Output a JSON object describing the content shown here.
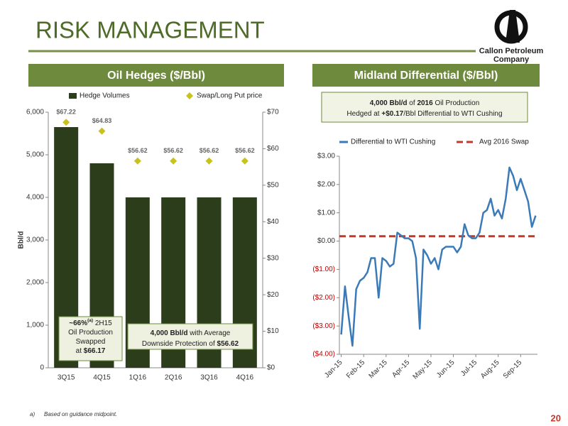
{
  "title": "RISK MANAGEMENT",
  "logo": {
    "line1": "Callon Petroleum",
    "line2": "Company"
  },
  "footnote": {
    "marker": "a)",
    "text": "Based on guidance midpoint."
  },
  "page_number": "20",
  "chart_data": [
    {
      "type": "bar",
      "title": "Oil Hedges ($/Bbl)",
      "y_label": "Bbl/d",
      "categories": [
        "3Q15",
        "4Q15",
        "1Q16",
        "2Q16",
        "3Q16",
        "4Q16"
      ],
      "series": [
        {
          "name": "Hedge Volumes",
          "color": "#2c3d1b",
          "values": [
            5650,
            4800,
            4000,
            4000,
            4000,
            4000
          ]
        },
        {
          "name": "Swap/Long Put price",
          "color": "#c9c21c",
          "axis": "y2",
          "marker": "diamond",
          "values": [
            67.22,
            64.83,
            56.62,
            56.62,
            56.62,
            56.62
          ],
          "value_labels": [
            "$67.22",
            "$64.83",
            "$56.62",
            "$56.62",
            "$56.62",
            "$56.62"
          ]
        }
      ],
      "ylim": [
        0,
        6000
      ],
      "yticks": [
        0,
        {
          "value": 1000,
          "label": "1,000"
        },
        {
          "value": 2000,
          "label": "2,000"
        },
        {
          "value": 3000,
          "label": "3,000"
        },
        {
          "value": 4000,
          "label": "4,000"
        },
        {
          "value": 5000,
          "label": "5,000"
        },
        {
          "value": 6000,
          "label": "6,000"
        }
      ],
      "y2lim": [
        0,
        70
      ],
      "y2ticks": [
        {
          "value": 0,
          "label": "$0"
        },
        {
          "value": 10,
          "label": "$10"
        },
        {
          "value": 20,
          "label": "$20"
        },
        {
          "value": 30,
          "label": "$30"
        },
        {
          "value": 40,
          "label": "$40"
        },
        {
          "value": 50,
          "label": "$50"
        },
        {
          "value": 60,
          "label": "$60"
        },
        {
          "value": 70,
          "label": "$70"
        }
      ],
      "grid": false,
      "legend": "top",
      "annotations": [
        {
          "lines": [
            [
              {
                "text": "~66%",
                "bold": true
              },
              {
                "text": "(a)",
                "bold": true,
                "sup": true
              },
              {
                "text": " 2H15"
              }
            ],
            [
              {
                "text": "Oil Production"
              }
            ],
            [
              {
                "text": "Swapped"
              }
            ],
            [
              {
                "text": "at "
              },
              {
                "text": "$66.17",
                "bold": true
              }
            ]
          ]
        },
        {
          "lines": [
            [
              {
                "text": "4,000 Bbl/d",
                "bold": true
              },
              {
                "text": " with Average"
              }
            ],
            [
              {
                "text": "Downside Protection of "
              },
              {
                "text": "$56.62",
                "bold": true
              }
            ]
          ]
        }
      ]
    },
    {
      "type": "line",
      "title": "Midland Differential ($/Bbl)",
      "subtitle": {
        "lines": [
          [
            {
              "text": "4,000 Bbl/d",
              "bold": true
            },
            {
              "text": " of "
            },
            {
              "text": "2016",
              "bold": true
            },
            {
              "text": " Oil Production"
            }
          ],
          [
            {
              "text": "Hedged at "
            },
            {
              "text": "+$0.17",
              "bold": true
            },
            {
              "text": "/Bbl Differential to WTI Cushing"
            }
          ]
        ]
      },
      "categories": [
        "Jan-15",
        null,
        null,
        null,
        null,
        null,
        "Feb-15",
        null,
        null,
        null,
        null,
        null,
        "Mar-15",
        null,
        null,
        null,
        null,
        null,
        "Apr-15",
        null,
        null,
        null,
        null,
        null,
        "May-15",
        null,
        null,
        null,
        null,
        null,
        "Jun-15",
        null,
        null,
        null,
        null,
        null,
        "Jul-15",
        null,
        null,
        null,
        null,
        null,
        "Aug-15",
        null,
        null,
        null,
        null,
        null,
        "Sep-15",
        null,
        null,
        null,
        null
      ],
      "series": [
        {
          "name": "Differential to WTI Cushing",
          "color": "#3a7ab8",
          "values": [
            -3.3,
            -1.6,
            -2.7,
            -3.7,
            -1.7,
            -1.4,
            -1.3,
            -1.1,
            -0.6,
            -0.6,
            -2.0,
            -0.6,
            -0.7,
            -0.9,
            -0.8,
            0.3,
            0.2,
            0.1,
            0.1,
            0.0,
            -0.6,
            -3.1,
            -0.3,
            -0.5,
            -0.8,
            -0.6,
            -1.0,
            -0.3,
            -0.2,
            -0.2,
            -0.2,
            -0.4,
            -0.2,
            0.6,
            0.2,
            0.1,
            0.1,
            0.3,
            1.0,
            1.1,
            1.5,
            0.9,
            1.1,
            0.8,
            1.5,
            2.6,
            2.3,
            1.8,
            2.2,
            1.8,
            1.4,
            0.5,
            0.9
          ]
        }
      ],
      "reference_lines": [
        {
          "name": "Avg 2016 Swap",
          "value": 0.17,
          "color": "#c0392b",
          "dash": true
        }
      ],
      "ylim": [
        -4,
        3
      ],
      "yticks": [
        {
          "value": -4,
          "label": "($4.00)"
        },
        {
          "value": -3,
          "label": "($3.00)"
        },
        {
          "value": -2,
          "label": "($2.00)"
        },
        {
          "value": -1,
          "label": "($1.00)"
        },
        {
          "value": 0,
          "label": "$0.00"
        },
        {
          "value": 1,
          "label": "$1.00"
        },
        {
          "value": 2,
          "label": "$2.00"
        },
        {
          "value": 3,
          "label": "$3.00"
        }
      ],
      "negative_label_color": "#c00000",
      "grid": false,
      "legend": "top"
    }
  ]
}
